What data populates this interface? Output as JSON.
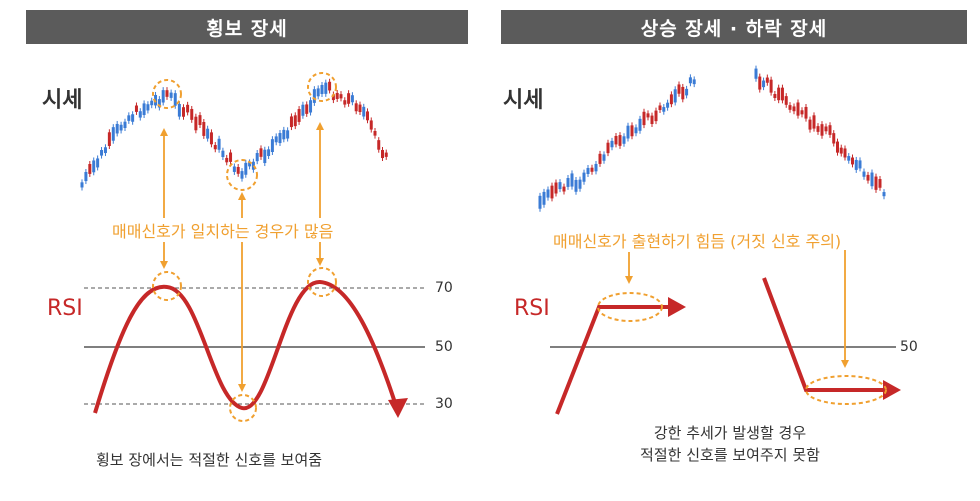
{
  "left": {
    "title": "횡보 장세",
    "price_label": "시세",
    "rsi_label": "RSI",
    "signal_note": "매매신호가 일치하는 경우가 많음",
    "levels": [
      "70",
      "50",
      "30"
    ],
    "caption": "횡보 장에서는 적절한 신호를 보여줌"
  },
  "right": {
    "title": "상승 장세 · 하락 장세",
    "price_label": "시세",
    "rsi_label": "RSI",
    "signal_note": "매매신호가 출현하기 힘듬 (거짓 신호 주의)",
    "levels": [
      "50"
    ],
    "caption_line1": "강한 추세가 발생할 경우",
    "caption_line2": "적절한 신호를 보여주지 못함"
  },
  "colors": {
    "header_bg": "#5b5b5b",
    "candle_up": "#3a7bd5",
    "candle_down": "#c62828",
    "rsi_line": "#c62828",
    "annotation": "#f0a030",
    "mid_line": "#555555"
  }
}
